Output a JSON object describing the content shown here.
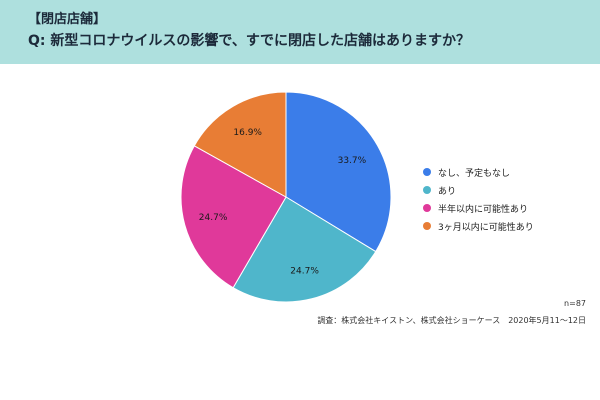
{
  "header": {
    "tag": "【閉店店舗】",
    "question": "Q: 新型コロナウイルスの影響で、すでに閉店した店舗はありますか？",
    "background": "#aee0de"
  },
  "chart_data": {
    "type": "pie",
    "slices": [
      {
        "label": "なし、予定もなし",
        "value": 33.7,
        "value_label": "33.7%",
        "color": "#3b7de9"
      },
      {
        "label": "あり",
        "value": 24.7,
        "value_label": "24.7%",
        "color": "#4fb6cb"
      },
      {
        "label": "半年以内に可能性あり",
        "value": 24.7,
        "value_label": "24.7%",
        "color": "#e0399a"
      },
      {
        "label": "3ヶ月以内に可能性あり",
        "value": 16.9,
        "value_label": "16.9%",
        "color": "#e87d35"
      }
    ],
    "legend_position": "right",
    "start": "top",
    "direction": "clockwise"
  },
  "footer": {
    "n": "n=87",
    "source": "調査：株式会社キイストン、株式会社ショーケース　2020年5月11〜12日"
  }
}
